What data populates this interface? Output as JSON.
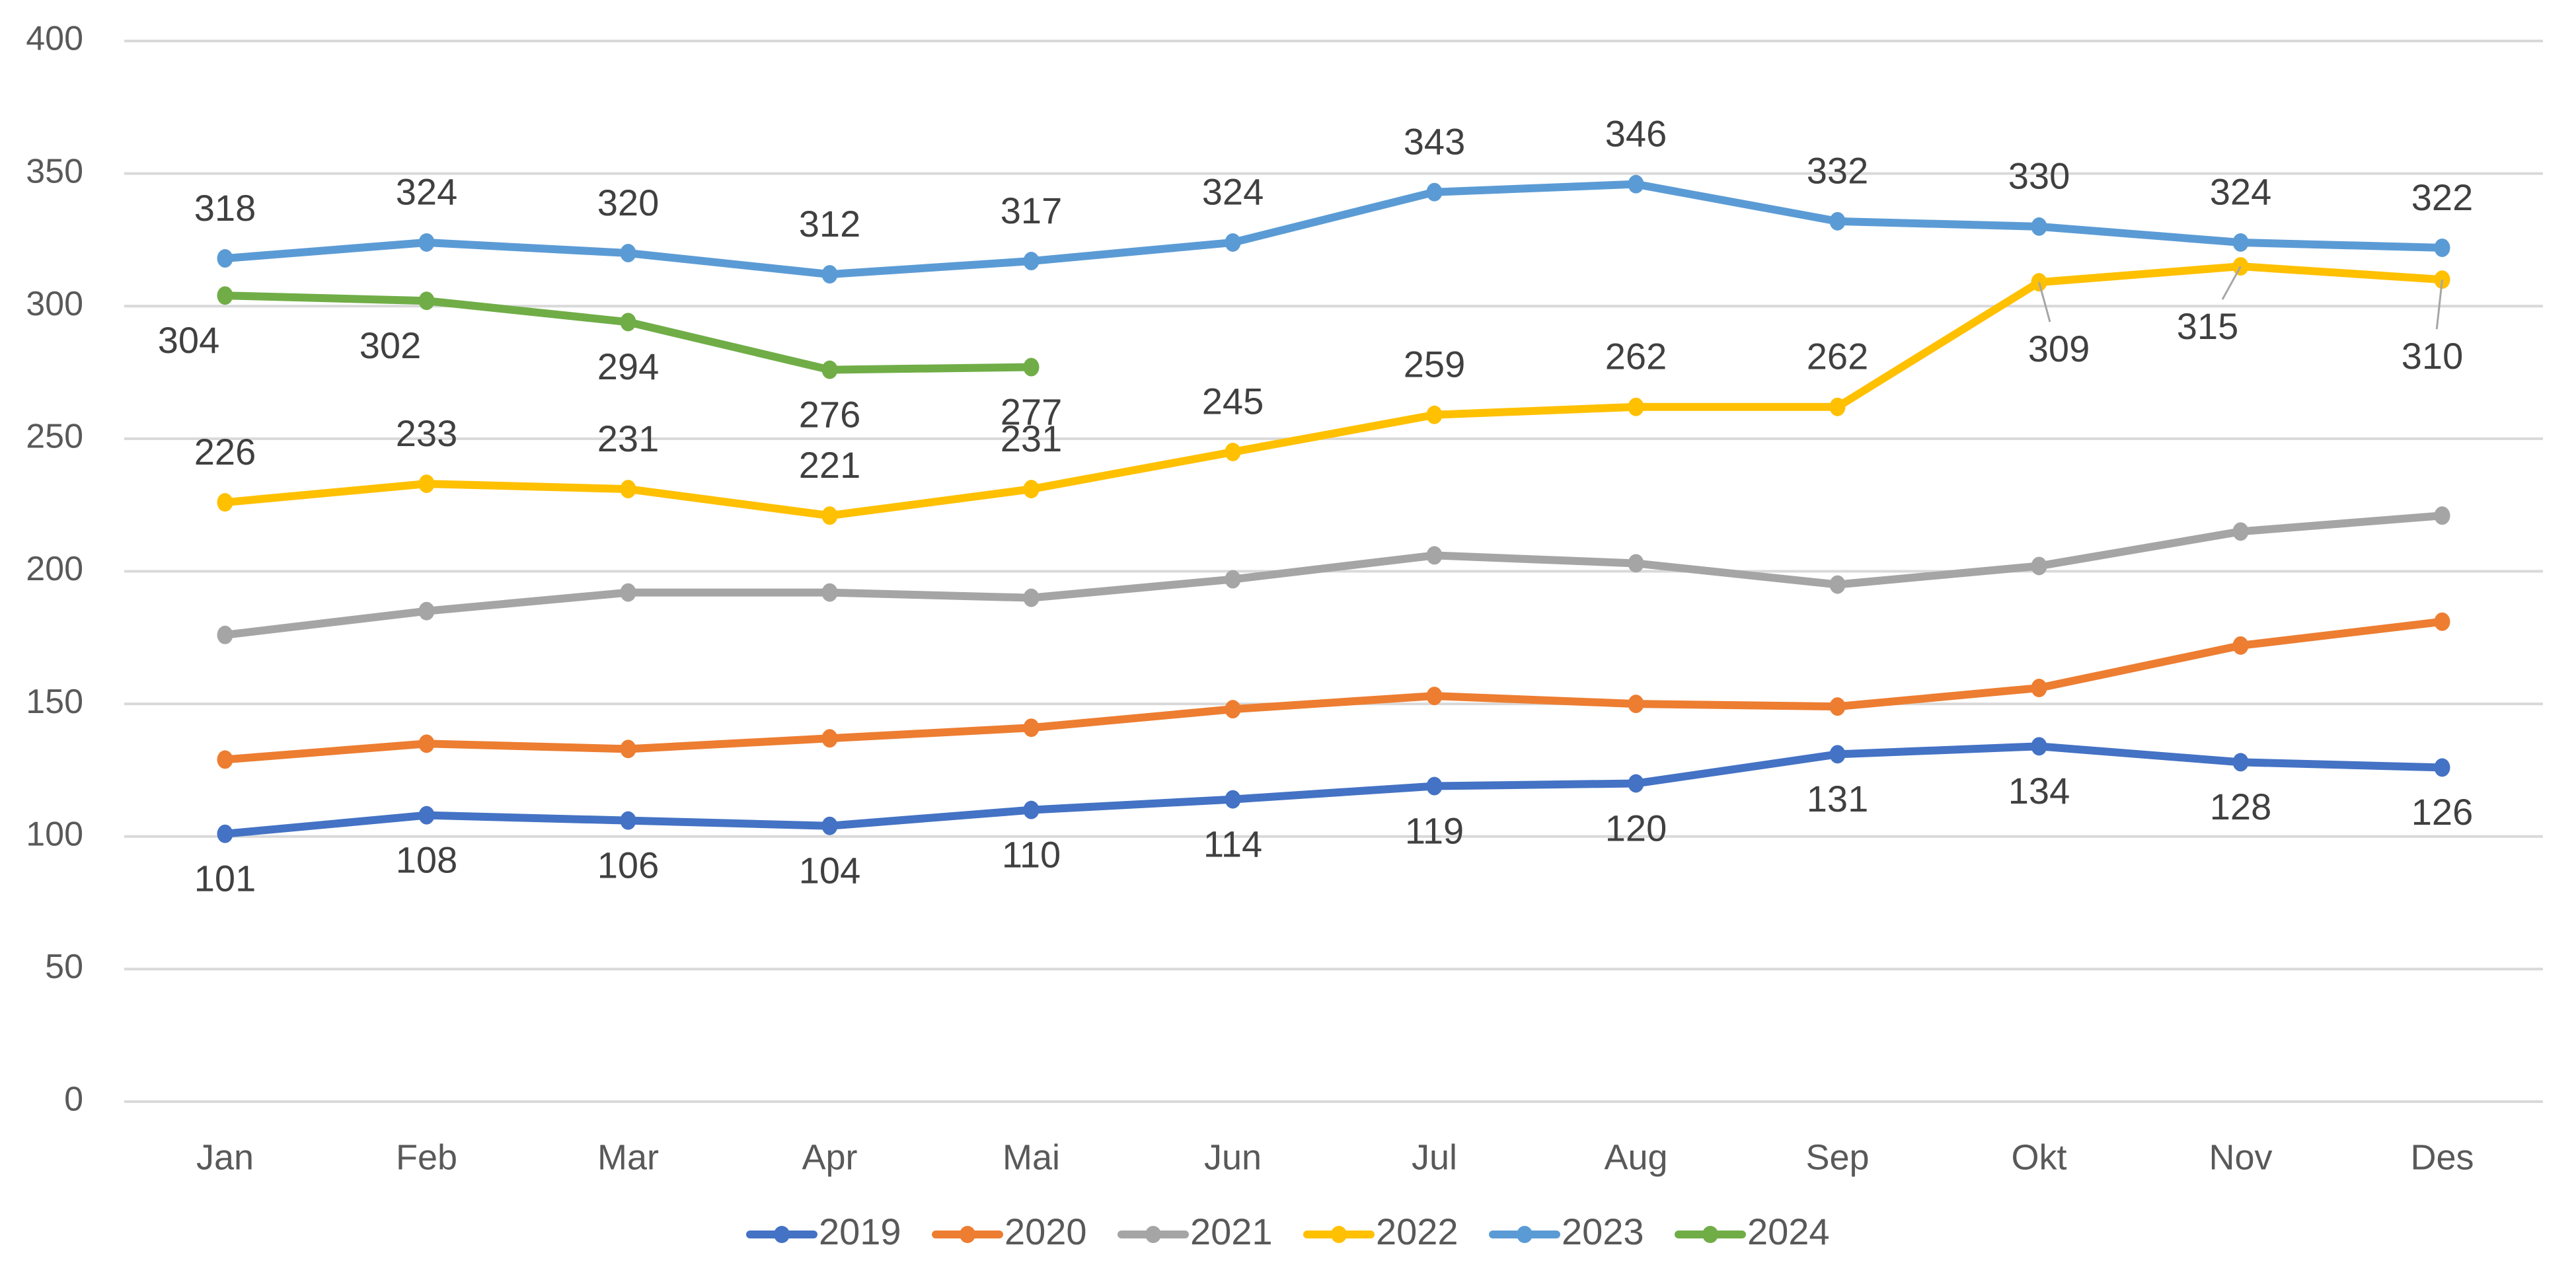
{
  "chart_data": {
    "type": "line",
    "title": "",
    "xlabel": "",
    "ylabel": "",
    "ylim": [
      0,
      400
    ],
    "yticks": [
      0,
      50,
      100,
      150,
      200,
      250,
      300,
      350,
      400
    ],
    "ytick_labels": [
      "0",
      "50",
      "100",
      "150",
      "200",
      "250",
      "300",
      "350",
      "400"
    ],
    "grid": true,
    "legend_position": "bottom",
    "categories": [
      "Jan",
      "Feb",
      "Mar",
      "Apr",
      "Mai",
      "Jun",
      "Jul",
      "Aug",
      "Sep",
      "Okt",
      "Nov",
      "Des"
    ],
    "series": [
      {
        "name": "2019",
        "color": "#4472c4",
        "values": [
          101,
          108,
          106,
          104,
          110,
          114,
          119,
          120,
          131,
          134,
          128,
          126
        ],
        "labels_shown": true,
        "label_position": "below"
      },
      {
        "name": "2020",
        "color": "#ed7d31",
        "values": [
          129,
          135,
          133,
          137,
          141,
          148,
          153,
          150,
          149,
          156,
          172,
          181
        ],
        "labels_shown": false
      },
      {
        "name": "2021",
        "color": "#a5a5a5",
        "values": [
          176,
          185,
          192,
          192,
          190,
          197,
          206,
          203,
          195,
          202,
          215,
          221
        ],
        "labels_shown": false
      },
      {
        "name": "2022",
        "color": "#ffc000",
        "values": [
          226,
          233,
          231,
          221,
          231,
          245,
          259,
          262,
          262,
          309,
          315,
          310
        ],
        "labels_shown": true,
        "label_position": "above",
        "labels_below_with_leader": [
          "Okt",
          "Nov",
          "Des"
        ]
      },
      {
        "name": "2023",
        "color": "#5b9bd5",
        "values": [
          318,
          324,
          320,
          312,
          317,
          324,
          343,
          346,
          332,
          330,
          324,
          322
        ],
        "labels_shown": true,
        "label_position": "above"
      },
      {
        "name": "2024",
        "color": "#70ad47",
        "values": [
          304,
          302,
          294,
          276,
          277,
          null,
          null,
          null,
          null,
          null,
          null,
          null
        ],
        "labels_shown": true,
        "label_position": "below"
      }
    ]
  }
}
